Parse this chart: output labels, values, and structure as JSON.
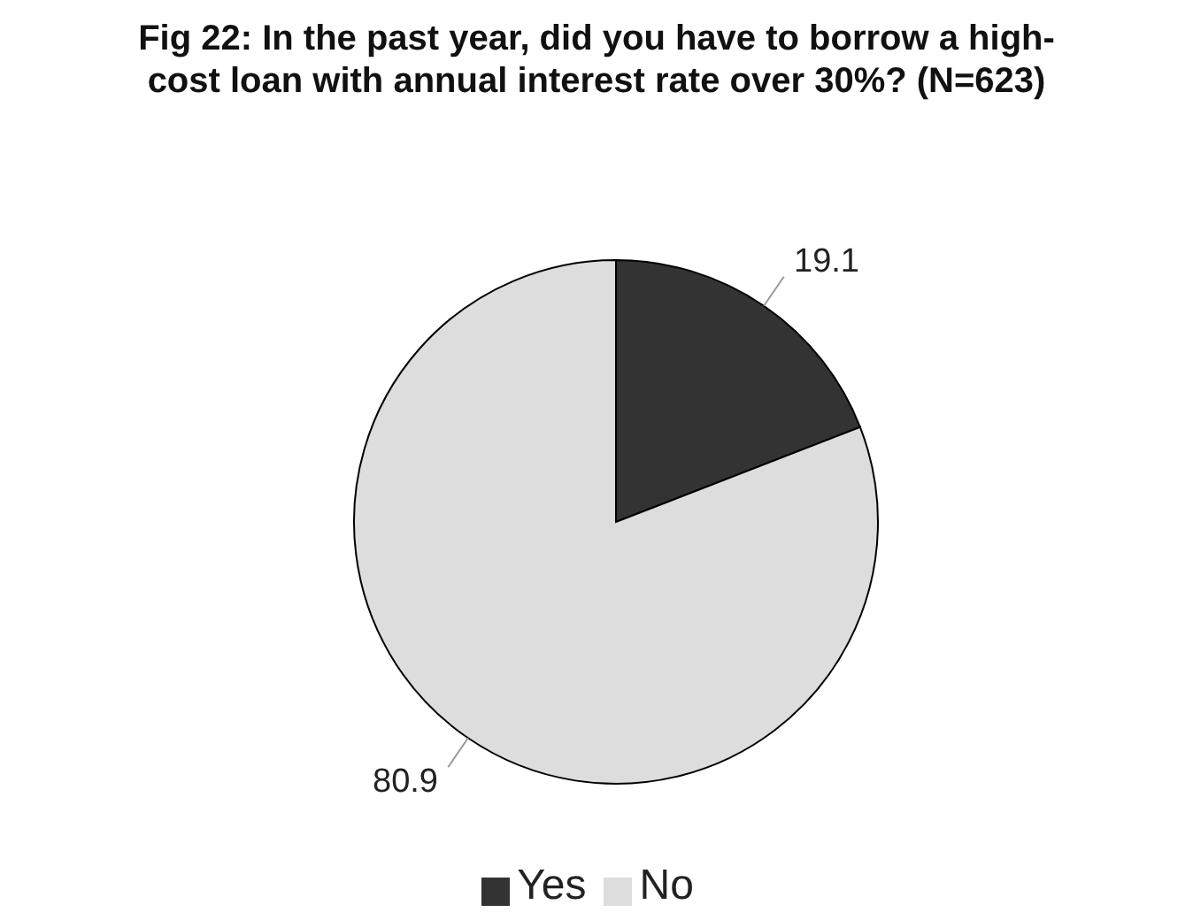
{
  "chart_data": {
    "type": "pie",
    "title": "Fig 22: In the past year, did you have to borrow a high-cost loan with annual interest rate over 30%? (N=623)",
    "categories": [
      "Yes",
      "No"
    ],
    "values": [
      19.1,
      80.9
    ],
    "colors": [
      "#333333",
      "#dddddd"
    ],
    "data_labels": true,
    "legend": "bottom"
  }
}
